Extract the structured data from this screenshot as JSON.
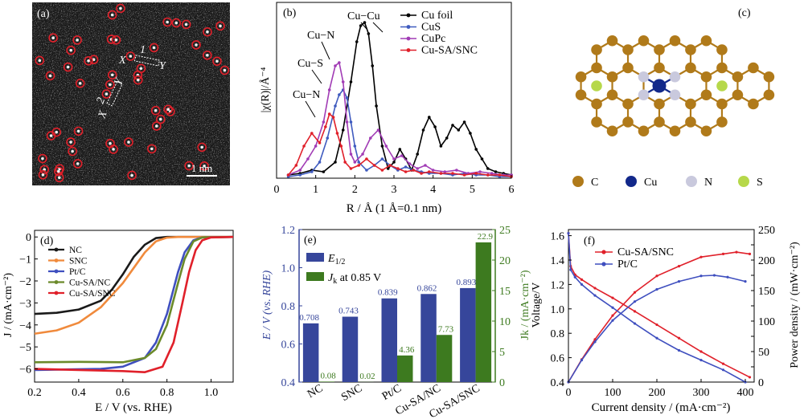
{
  "chart_data": [
    {
      "panel": "(a)",
      "type": "image",
      "labels": [
        "1",
        "2",
        "X",
        "Y",
        "X",
        "Y"
      ],
      "scale_bar": "1 nm"
    },
    {
      "panel": "(b)",
      "type": "line",
      "xlabel": "R / Å (1 Å=0.1 nm)",
      "ylabel": "|χ(R)|/Å⁻⁴",
      "xlim": [
        0,
        6
      ],
      "xticks": [
        0,
        1,
        2,
        3,
        4,
        5,
        6
      ],
      "legend": "top-right",
      "annotations": [
        "Cu−Cu",
        "Cu−N",
        "Cu−S",
        "Cu−N"
      ],
      "series": [
        {
          "name": "Cu foil",
          "color": "#000000",
          "x": [
            0.3,
            0.6,
            0.9,
            1.2,
            1.5,
            1.7,
            1.9,
            2.05,
            2.15,
            2.25,
            2.35,
            2.45,
            2.55,
            2.7,
            2.85,
            3.0,
            3.15,
            3.3,
            3.45,
            3.6,
            3.75,
            3.9,
            4.05,
            4.2,
            4.35,
            4.5,
            4.65,
            4.8,
            4.95,
            5.1,
            5.25,
            5.4,
            5.6,
            5.8,
            6.0
          ],
          "y": [
            0.02,
            0.03,
            0.05,
            0.04,
            0.1,
            0.3,
            0.6,
            0.85,
            0.95,
            0.97,
            0.9,
            0.7,
            0.45,
            0.2,
            0.06,
            0.1,
            0.18,
            0.12,
            0.05,
            0.15,
            0.3,
            0.38,
            0.32,
            0.2,
            0.25,
            0.33,
            0.3,
            0.35,
            0.28,
            0.18,
            0.12,
            0.06,
            0.04,
            0.03,
            0.02
          ]
        },
        {
          "name": "CuS",
          "color": "#3f5bbf",
          "x": [
            0.3,
            0.6,
            0.9,
            1.1,
            1.3,
            1.5,
            1.6,
            1.7,
            1.8,
            1.9,
            2.0,
            2.1,
            2.3,
            2.5,
            2.7,
            2.9,
            3.1,
            3.3,
            3.5,
            3.7,
            3.9,
            4.2,
            4.5,
            4.8,
            5.1,
            5.4,
            5.7,
            6.0
          ],
          "y": [
            0.01,
            0.02,
            0.04,
            0.1,
            0.25,
            0.45,
            0.52,
            0.55,
            0.5,
            0.35,
            0.2,
            0.1,
            0.05,
            0.08,
            0.12,
            0.08,
            0.05,
            0.07,
            0.05,
            0.04,
            0.03,
            0.03,
            0.02,
            0.03,
            0.02,
            0.02,
            0.01,
            0.01
          ]
        },
        {
          "name": "CuPc",
          "color": "#a13cb5",
          "x": [
            0.3,
            0.6,
            0.8,
            1.0,
            1.2,
            1.35,
            1.5,
            1.6,
            1.7,
            1.8,
            1.9,
            2.0,
            2.2,
            2.4,
            2.6,
            2.8,
            3.0,
            3.2,
            3.4,
            3.6,
            3.8,
            4.0,
            4.3,
            4.6,
            4.9,
            5.2,
            5.5,
            5.8,
            6.0
          ],
          "y": [
            0.02,
            0.05,
            0.12,
            0.2,
            0.35,
            0.55,
            0.7,
            0.72,
            0.6,
            0.35,
            0.15,
            0.1,
            0.15,
            0.25,
            0.3,
            0.2,
            0.12,
            0.14,
            0.09,
            0.06,
            0.08,
            0.05,
            0.04,
            0.05,
            0.03,
            0.04,
            0.03,
            0.02,
            0.02
          ]
        },
        {
          "name": "Cu-SA/SNC",
          "color": "#e0202a",
          "x": [
            0.3,
            0.5,
            0.7,
            0.9,
            1.1,
            1.25,
            1.35,
            1.45,
            1.55,
            1.65,
            1.75,
            1.9,
            2.1,
            2.3,
            2.5,
            2.7,
            2.9,
            3.1,
            3.3,
            3.5,
            3.7,
            3.9,
            4.2,
            4.5,
            4.8,
            5.1,
            5.4,
            5.7,
            6.0
          ],
          "y": [
            0.02,
            0.08,
            0.2,
            0.28,
            0.22,
            0.32,
            0.4,
            0.38,
            0.28,
            0.2,
            0.1,
            0.06,
            0.08,
            0.12,
            0.08,
            0.05,
            0.08,
            0.06,
            0.04,
            0.05,
            0.03,
            0.04,
            0.03,
            0.03,
            0.02,
            0.03,
            0.02,
            0.02,
            0.01
          ]
        }
      ]
    },
    {
      "panel": "(c)",
      "type": "structure",
      "legend": [
        {
          "label": "C",
          "color": "#b07a1a"
        },
        {
          "label": "Cu",
          "color": "#12288a"
        },
        {
          "label": "N",
          "color": "#c9c9dd"
        },
        {
          "label": "S",
          "color": "#b6d84a"
        }
      ]
    },
    {
      "panel": "(d)",
      "type": "line",
      "xlabel": "E / V (vs. RHE)",
      "ylabel": "J / (mA·cm⁻²)",
      "xlim": [
        0.2,
        1.1
      ],
      "ylim": [
        -6.6,
        0.3
      ],
      "xticks": [
        0.2,
        0.4,
        0.6,
        0.8,
        1.0
      ],
      "xtick_labels": [
        "0.2",
        "0.4",
        "0.6",
        "0.8",
        "1.0"
      ],
      "yticks": [
        0,
        -1,
        -2,
        -3,
        -4,
        -5,
        -6
      ],
      "legend": "top-left",
      "series": [
        {
          "name": "NC",
          "color": "#1a1a1a",
          "x": [
            0.2,
            0.3,
            0.4,
            0.5,
            0.55,
            0.6,
            0.65,
            0.7,
            0.75,
            0.8,
            1.1
          ],
          "y": [
            -3.5,
            -3.45,
            -3.3,
            -2.9,
            -2.4,
            -1.7,
            -0.9,
            -0.35,
            -0.05,
            0,
            0
          ]
        },
        {
          "name": "SNC",
          "color": "#f08a3c",
          "x": [
            0.2,
            0.3,
            0.4,
            0.5,
            0.6,
            0.65,
            0.7,
            0.75,
            0.8,
            0.85,
            1.1
          ],
          "y": [
            -4.4,
            -4.25,
            -3.9,
            -3.2,
            -2.1,
            -1.4,
            -0.7,
            -0.2,
            -0.03,
            0,
            0
          ]
        },
        {
          "name": "Pt/C",
          "color": "#3f4fbf",
          "x": [
            0.2,
            0.5,
            0.6,
            0.7,
            0.75,
            0.8,
            0.85,
            0.88,
            0.92,
            0.96,
            1.1
          ],
          "y": [
            -6.05,
            -6.0,
            -5.9,
            -5.5,
            -4.8,
            -3.5,
            -1.6,
            -0.7,
            -0.15,
            -0.02,
            0
          ]
        },
        {
          "name": "Cu-SA/NC",
          "color": "#6b8a2a",
          "x": [
            0.2,
            0.4,
            0.6,
            0.7,
            0.75,
            0.8,
            0.85,
            0.88,
            0.92,
            0.96,
            1.1
          ],
          "y": [
            -5.7,
            -5.68,
            -5.7,
            -5.5,
            -5.1,
            -4.0,
            -2.1,
            -1.0,
            -0.2,
            -0.02,
            0
          ]
        },
        {
          "name": "Cu-SA/SNC",
          "color": "#e0202a",
          "x": [
            0.2,
            0.4,
            0.6,
            0.7,
            0.78,
            0.83,
            0.87,
            0.9,
            0.93,
            0.96,
            1.0,
            1.1
          ],
          "y": [
            -6.0,
            -6.05,
            -6.1,
            -6.15,
            -5.9,
            -4.8,
            -3.0,
            -1.6,
            -0.6,
            -0.15,
            -0.02,
            0
          ]
        }
      ]
    },
    {
      "panel": "(e)",
      "type": "bar",
      "categories": [
        "NC",
        "SNC",
        "Pt/C",
        "Cu-SA/NC",
        "Cu-SA/SNC"
      ],
      "series": [
        {
          "name": "E1/2",
          "axis": "left",
          "color": "#36469b",
          "values": [
            0.708,
            0.743,
            0.839,
            0.862,
            0.893
          ],
          "value_labels": [
            "0.708",
            "0.743",
            "0.839",
            "0.862",
            "0.893"
          ]
        },
        {
          "name": "Jk at 0.85 V",
          "axis": "right",
          "color": "#3d7a1f",
          "values": [
            0.08,
            0.02,
            4.36,
            7.73,
            22.9
          ],
          "value_labels": [
            "0.08",
            "0.02",
            "4.36",
            "7.73",
            "22.9"
          ]
        }
      ],
      "legend_labels": {
        "e_sym": "E",
        "e_sub": "1/2",
        "j_sym": "J",
        "j_sub": "k",
        "j_rest": " at 0.85 V"
      },
      "ylabel_left": "E / V (vs. RHE)",
      "ylabel_right": "Jk / (mA·cm⁻²)",
      "ylim_left": [
        0.4,
        1.2
      ],
      "ylim_right": [
        0,
        25
      ],
      "yticks_left": [
        "0.4",
        "0.6",
        "0.8",
        "1.0",
        "1.2"
      ],
      "yticks_right": [
        "0",
        "5",
        "10",
        "15",
        "20",
        "25"
      ],
      "legend": "top-left"
    },
    {
      "panel": "(f)",
      "type": "line",
      "xlabel": "Current density / (mA·cm⁻²)",
      "ylabel_left": "Voltage/V",
      "ylabel_right": "Power density / (mW·cm⁻²)",
      "xlim": [
        0,
        420
      ],
      "ylim_left": [
        0.4,
        1.65
      ],
      "ylim_right": [
        0,
        250
      ],
      "xticks": [
        0,
        100,
        200,
        300,
        400
      ],
      "yticks_left": [
        "0.4",
        "0.6",
        "0.8",
        "1.0",
        "1.2",
        "1.4",
        "1.6"
      ],
      "yticks_right": [
        "0",
        "25",
        "50",
        "75",
        "100",
        "125",
        "150",
        "175",
        "200",
        "225",
        "250"
      ],
      "yticks_right_shown": [
        "0",
        "50",
        "100",
        "150",
        "200",
        "250"
      ],
      "legend": "top-left",
      "series": [
        {
          "name": "Cu-SA/SNC",
          "color": "#e0202a",
          "voltage": {
            "x": [
              0,
              5,
              15,
              30,
              60,
              100,
              150,
              200,
              250,
              300,
              350,
              410
            ],
            "y": [
              1.62,
              1.35,
              1.28,
              1.24,
              1.17,
              1.09,
              0.98,
              0.87,
              0.76,
              0.65,
              0.55,
              0.44
            ]
          },
          "power": {
            "x": [
              0,
              30,
              60,
              100,
              150,
              200,
              250,
              300,
              350,
              380,
              410
            ],
            "y": [
              0,
              37,
              70,
              109,
              147,
              174,
              190,
              205,
              210,
              213,
              210
            ]
          }
        },
        {
          "name": "Pt/C",
          "color": "#3f4fbf",
          "voltage": {
            "x": [
              0,
              5,
              15,
              30,
              60,
              100,
              150,
              200,
              250,
              300,
              350,
              400
            ],
            "y": [
              1.62,
              1.32,
              1.26,
              1.2,
              1.11,
              1.01,
              0.88,
              0.76,
              0.66,
              0.58,
              0.5,
              0.4
            ]
          },
          "power": {
            "x": [
              0,
              30,
              60,
              100,
              150,
              200,
              250,
              300,
              330,
              360,
              400
            ],
            "y": [
              0,
              36,
              66,
              101,
              132,
              152,
              165,
              174,
              175,
              172,
              165
            ]
          }
        }
      ]
    }
  ]
}
